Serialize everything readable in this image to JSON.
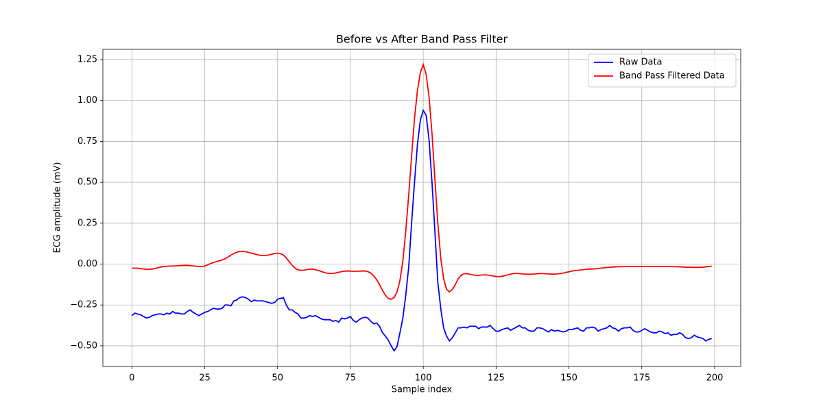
{
  "chart_data": {
    "type": "line",
    "title": "Before vs After Band Pass Filter",
    "x_label": "Sample index",
    "y_label": "ECG amplitude (mV)",
    "x": [
      0,
      1,
      2,
      3,
      4,
      5,
      6,
      7,
      8,
      9,
      10,
      11,
      12,
      13,
      14,
      15,
      16,
      17,
      18,
      19,
      20,
      21,
      22,
      23,
      24,
      25,
      26,
      27,
      28,
      29,
      30,
      31,
      32,
      33,
      34,
      35,
      36,
      37,
      38,
      39,
      40,
      41,
      42,
      43,
      44,
      45,
      46,
      47,
      48,
      49,
      50,
      51,
      52,
      53,
      54,
      55,
      56,
      57,
      58,
      59,
      60,
      61,
      62,
      63,
      64,
      65,
      66,
      67,
      68,
      69,
      70,
      71,
      72,
      73,
      74,
      75,
      76,
      77,
      78,
      79,
      80,
      81,
      82,
      83,
      84,
      85,
      86,
      87,
      88,
      89,
      90,
      91,
      92,
      93,
      94,
      95,
      96,
      97,
      98,
      99,
      100,
      101,
      102,
      103,
      104,
      105,
      106,
      107,
      108,
      109,
      110,
      111,
      112,
      113,
      114,
      115,
      116,
      117,
      118,
      119,
      120,
      121,
      122,
      123,
      124,
      125,
      126,
      127,
      128,
      129,
      130,
      131,
      132,
      133,
      134,
      135,
      136,
      137,
      138,
      139,
      140,
      141,
      142,
      143,
      144,
      145,
      146,
      147,
      148,
      149,
      150,
      151,
      152,
      153,
      154,
      155,
      156,
      157,
      158,
      159,
      160,
      161,
      162,
      163,
      164,
      165,
      166,
      167,
      168,
      169,
      170,
      171,
      172,
      173,
      174,
      175,
      176,
      177,
      178,
      179,
      180,
      181,
      182,
      183,
      184,
      185,
      186,
      187,
      188,
      189,
      190,
      191,
      192,
      193,
      194,
      195,
      196,
      197,
      198,
      199
    ],
    "series": [
      {
        "name": "Raw Data",
        "color": "#0000ff",
        "values": [
          -0.315,
          -0.3,
          -0.305,
          -0.31,
          -0.32,
          -0.33,
          -0.325,
          -0.315,
          -0.31,
          -0.305,
          -0.305,
          -0.31,
          -0.3,
          -0.305,
          -0.29,
          -0.3,
          -0.3,
          -0.305,
          -0.305,
          -0.29,
          -0.28,
          -0.295,
          -0.305,
          -0.315,
          -0.305,
          -0.295,
          -0.29,
          -0.28,
          -0.27,
          -0.275,
          -0.275,
          -0.27,
          -0.25,
          -0.25,
          -0.255,
          -0.225,
          -0.22,
          -0.205,
          -0.2,
          -0.205,
          -0.215,
          -0.23,
          -0.22,
          -0.225,
          -0.225,
          -0.225,
          -0.23,
          -0.235,
          -0.24,
          -0.235,
          -0.215,
          -0.21,
          -0.205,
          -0.25,
          -0.28,
          -0.28,
          -0.295,
          -0.305,
          -0.33,
          -0.33,
          -0.325,
          -0.315,
          -0.32,
          -0.315,
          -0.325,
          -0.335,
          -0.34,
          -0.34,
          -0.34,
          -0.35,
          -0.345,
          -0.355,
          -0.33,
          -0.335,
          -0.33,
          -0.32,
          -0.345,
          -0.355,
          -0.34,
          -0.33,
          -0.325,
          -0.33,
          -0.35,
          -0.365,
          -0.36,
          -0.38,
          -0.42,
          -0.44,
          -0.465,
          -0.5,
          -0.53,
          -0.505,
          -0.42,
          -0.33,
          -0.19,
          -0.02,
          0.25,
          0.5,
          0.73,
          0.88,
          0.94,
          0.91,
          0.76,
          0.5,
          0.2,
          -0.11,
          -0.27,
          -0.39,
          -0.44,
          -0.47,
          -0.45,
          -0.42,
          -0.39,
          -0.39,
          -0.385,
          -0.39,
          -0.38,
          -0.38,
          -0.38,
          -0.395,
          -0.385,
          -0.385,
          -0.385,
          -0.375,
          -0.395,
          -0.41,
          -0.41,
          -0.4,
          -0.395,
          -0.39,
          -0.405,
          -0.395,
          -0.385,
          -0.375,
          -0.39,
          -0.39,
          -0.405,
          -0.41,
          -0.41,
          -0.39,
          -0.39,
          -0.395,
          -0.405,
          -0.415,
          -0.4,
          -0.41,
          -0.405,
          -0.41,
          -0.415,
          -0.41,
          -0.4,
          -0.4,
          -0.395,
          -0.39,
          -0.405,
          -0.41,
          -0.39,
          -0.39,
          -0.385,
          -0.39,
          -0.41,
          -0.4,
          -0.395,
          -0.39,
          -0.375,
          -0.39,
          -0.395,
          -0.41,
          -0.395,
          -0.39,
          -0.39,
          -0.385,
          -0.405,
          -0.415,
          -0.415,
          -0.405,
          -0.395,
          -0.405,
          -0.415,
          -0.42,
          -0.42,
          -0.41,
          -0.415,
          -0.425,
          -0.42,
          -0.435,
          -0.43,
          -0.43,
          -0.42,
          -0.43,
          -0.45,
          -0.455,
          -0.45,
          -0.435,
          -0.445,
          -0.45,
          -0.455,
          -0.47,
          -0.46,
          -0.455
        ]
      },
      {
        "name": "Band Pass Filtered Data",
        "color": "#ff0000",
        "values": [
          -0.025,
          -0.025,
          -0.025,
          -0.027,
          -0.03,
          -0.032,
          -0.032,
          -0.03,
          -0.027,
          -0.022,
          -0.018,
          -0.015,
          -0.013,
          -0.012,
          -0.012,
          -0.011,
          -0.01,
          -0.009,
          -0.008,
          -0.008,
          -0.009,
          -0.011,
          -0.013,
          -0.015,
          -0.015,
          -0.012,
          -0.005,
          0.003,
          0.01,
          0.015,
          0.02,
          0.025,
          0.033,
          0.043,
          0.055,
          0.065,
          0.073,
          0.077,
          0.078,
          0.076,
          0.072,
          0.067,
          0.062,
          0.057,
          0.054,
          0.052,
          0.053,
          0.056,
          0.06,
          0.065,
          0.067,
          0.064,
          0.055,
          0.038,
          0.015,
          -0.008,
          -0.025,
          -0.035,
          -0.038,
          -0.037,
          -0.034,
          -0.031,
          -0.031,
          -0.034,
          -0.039,
          -0.045,
          -0.051,
          -0.056,
          -0.058,
          -0.057,
          -0.054,
          -0.05,
          -0.046,
          -0.043,
          -0.042,
          -0.043,
          -0.044,
          -0.044,
          -0.043,
          -0.042,
          -0.042,
          -0.046,
          -0.055,
          -0.072,
          -0.095,
          -0.125,
          -0.16,
          -0.19,
          -0.21,
          -0.215,
          -0.205,
          -0.17,
          -0.1,
          0.02,
          0.2,
          0.42,
          0.66,
          0.89,
          1.06,
          1.17,
          1.22,
          1.16,
          1.02,
          0.8,
          0.52,
          0.25,
          0.04,
          -0.09,
          -0.155,
          -0.17,
          -0.155,
          -0.125,
          -0.09,
          -0.068,
          -0.059,
          -0.058,
          -0.062,
          -0.066,
          -0.069,
          -0.069,
          -0.067,
          -0.066,
          -0.067,
          -0.069,
          -0.073,
          -0.076,
          -0.077,
          -0.075,
          -0.071,
          -0.066,
          -0.061,
          -0.058,
          -0.057,
          -0.058,
          -0.06,
          -0.061,
          -0.062,
          -0.062,
          -0.061,
          -0.059,
          -0.058,
          -0.058,
          -0.059,
          -0.06,
          -0.061,
          -0.061,
          -0.06,
          -0.058,
          -0.055,
          -0.051,
          -0.047,
          -0.043,
          -0.04,
          -0.038,
          -0.036,
          -0.034,
          -0.032,
          -0.031,
          -0.03,
          -0.029,
          -0.027,
          -0.025,
          -0.023,
          -0.021,
          -0.019,
          -0.018,
          -0.017,
          -0.016,
          -0.016,
          -0.015,
          -0.015,
          -0.015,
          -0.015,
          -0.015,
          -0.015,
          -0.014,
          -0.014,
          -0.014,
          -0.014,
          -0.014,
          -0.015,
          -0.015,
          -0.015,
          -0.015,
          -0.015,
          -0.015,
          -0.016,
          -0.016,
          -0.017,
          -0.018,
          -0.019,
          -0.019,
          -0.02,
          -0.02,
          -0.02,
          -0.02,
          -0.019,
          -0.017,
          -0.015,
          -0.012
        ]
      }
    ],
    "xlim": [
      -9.95,
      208.95
    ],
    "xticks": [
      0,
      25,
      50,
      75,
      100,
      125,
      150,
      175,
      200
    ],
    "ylim": [
      -0.626,
      1.313
    ],
    "yticks": [
      {
        "value": -0.5,
        "label": "−0.50"
      },
      {
        "value": -0.25,
        "label": "−0.25"
      },
      {
        "value": 0,
        "label": "0.00"
      },
      {
        "value": 0.25,
        "label": "0.25"
      },
      {
        "value": 0.5,
        "label": "0.50"
      },
      {
        "value": 0.75,
        "label": "0.75"
      },
      {
        "value": 1,
        "label": "1.00"
      },
      {
        "value": 1.25,
        "label": "1.25"
      }
    ],
    "grid": true,
    "legend": "upper-right"
  }
}
